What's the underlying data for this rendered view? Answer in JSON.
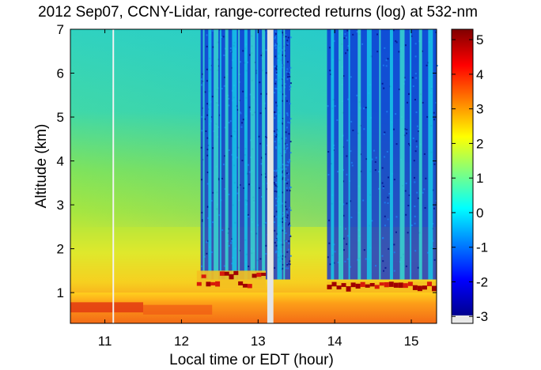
{
  "chart_data": {
    "type": "heatmap",
    "title": "2012 Sep07, CCNY-Lidar, range-corrected returns (log) at 532-nm",
    "xlabel": "Local time or EDT (hour)",
    "ylabel": "Altitude (km)",
    "xlim": [
      10.55,
      15.33
    ],
    "ylim": [
      0.3,
      7.0
    ],
    "x_ticks": [
      "11",
      "12",
      "13",
      "14",
      "15"
    ],
    "y_ticks": [
      "1",
      "2",
      "3",
      "4",
      "5",
      "6",
      "7"
    ],
    "colorbar": {
      "colormap": "jet",
      "range": [
        -3.2,
        5.3
      ],
      "ticks": [
        "-3",
        "-2",
        "-1",
        "0",
        "1",
        "2",
        "3",
        "4",
        "5"
      ]
    },
    "data_gaps_hour": [
      [
        11.1,
        11.12
      ],
      [
        13.12,
        13.2
      ]
    ],
    "layers": [
      {
        "name_visible": "",
        "time_range": [
          10.55,
          15.33
        ],
        "altitude_km": [
          0.3,
          1.0
        ],
        "value_approx": 3.0
      },
      {
        "name_visible": "",
        "time_range": [
          12.2,
          13.1
        ],
        "altitude_km": [
          1.1,
          1.5
        ],
        "value_approx": 4.5
      },
      {
        "name_visible": "",
        "time_range": [
          13.9,
          15.33
        ],
        "altitude_km": [
          1.05,
          1.25
        ],
        "value_approx": 4.5
      }
    ]
  }
}
